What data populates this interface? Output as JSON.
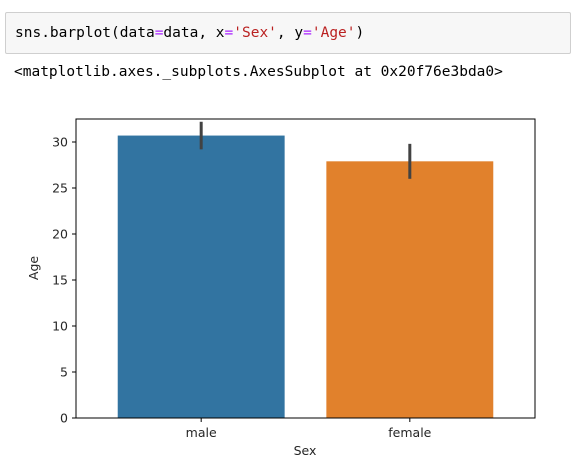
{
  "code_cell": {
    "code_prefix": "sns.barplot(data",
    "code_eq1": "=",
    "code_mid1": "data, x",
    "code_eq2": "=",
    "code_str1": "'Sex'",
    "code_mid2": ", y",
    "code_eq3": "=",
    "code_str2": "'Age'",
    "code_suffix": ")"
  },
  "output": {
    "text": "<matplotlib.axes._subplots.AxesSubplot at 0x20f76e3bda0>"
  },
  "chart_data": {
    "type": "bar",
    "categories": [
      "male",
      "female"
    ],
    "values": [
      30.7,
      27.9
    ],
    "error_bars": [
      [
        29.2,
        32.2
      ],
      [
        26.0,
        29.8
      ]
    ],
    "colors": [
      "#3274a1",
      "#e1812c"
    ],
    "xlabel": "Sex",
    "ylabel": "Age",
    "ylim": [
      0,
      32.5
    ],
    "yticks": [
      0,
      5,
      10,
      15,
      20,
      25,
      30
    ],
    "grid": false
  }
}
